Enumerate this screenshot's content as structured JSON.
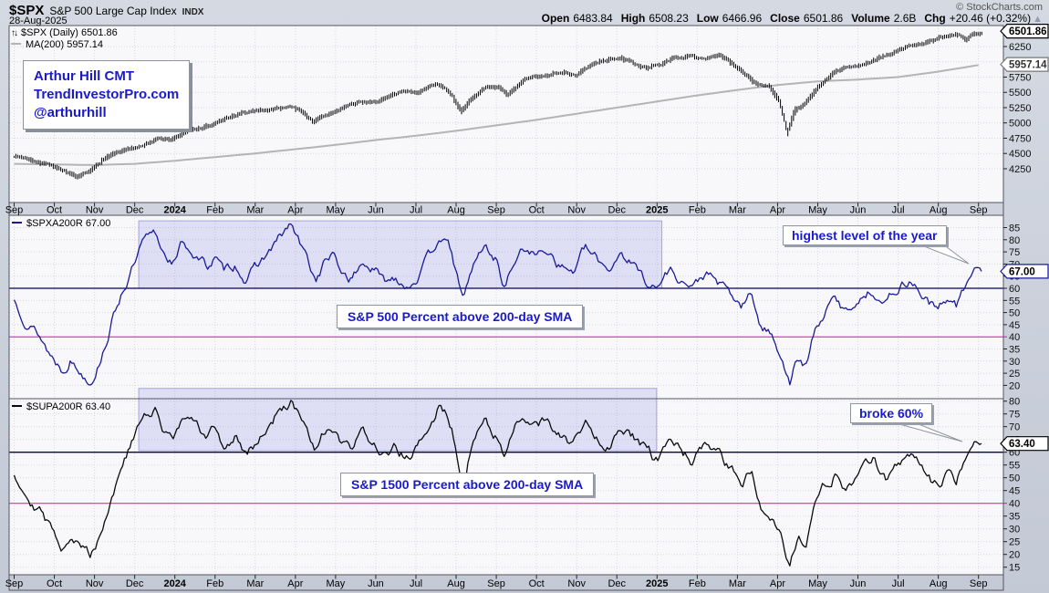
{
  "header": {
    "symbol": "$SPX",
    "name": "S&P 500 Large Cap Index",
    "exchange": "INDX",
    "date": "28-Aug-2025",
    "copyright": "© StockCharts.com",
    "quote": {
      "open_label": "Open",
      "open": "6483.84",
      "high_label": "High",
      "high": "6508.23",
      "low_label": "Low",
      "low": "6466.96",
      "close_label": "Close",
      "close": "6501.86",
      "volume_label": "Volume",
      "volume": "2.6B",
      "chg_label": "Chg",
      "chg": "+20.46 (+0.32%)",
      "arrow": "▲"
    }
  },
  "legends": {
    "price": {
      "icon": "↑↓",
      "label": "$SPX (Daily)",
      "value": "6501.86"
    },
    "ma": {
      "label": "MA(200)",
      "value": "5957.14"
    },
    "spxa": {
      "label": "$SPXA200R",
      "value": "67.00"
    },
    "supa": {
      "label": "$SUPA200R",
      "value": "63.40"
    }
  },
  "annotations": {
    "credit_line1": "Arthur Hill CMT",
    "credit_line2": "TrendInvestorPro.com",
    "credit_line3": "@arthurhill",
    "panel2_box": "S&P 500 Percent above 200-day SMA",
    "panel3_box": "S&P 1500 Percent above 200-day SMA",
    "bubble_high": "highest level of the year",
    "bubble_broke": "broke 60%"
  },
  "colors": {
    "page_bg": "#c9cfda",
    "panel_bg": "#f8f8fb",
    "grid": "#d6d7e3",
    "frame": "#54555f",
    "price": "#000000",
    "ma": "#b4b4b4",
    "spxa_line": "#1a1a99",
    "supa_line": "#0a0a0a",
    "level60": "#000066",
    "level40": "#ee00cc",
    "highlight_fill": "rgba(120,120,220,0.20)",
    "highlight_stroke": "rgba(110,110,200,0.55)",
    "annotation_text": "#1a1acd",
    "axis_text": "#111111"
  },
  "chart_data": [
    {
      "type": "ohlc-bars",
      "panel": "price",
      "title": "$SPX (Daily) with 200-day moving average",
      "x_categories": [
        "Sep",
        "Oct",
        "Nov",
        "Dec",
        "2024",
        "Feb",
        "Mar",
        "Apr",
        "May",
        "Jun",
        "Jul",
        "Aug",
        "Sep",
        "Oct",
        "Nov",
        "Dec",
        "2025",
        "Feb",
        "Mar",
        "Apr",
        "May",
        "Jun",
        "Jul",
        "Aug",
        "Sep"
      ],
      "yticks": [
        4250,
        4500,
        4750,
        5000,
        5250,
        5500,
        5750,
        6000,
        6250
      ],
      "ylim": [
        3700,
        6600
      ],
      "series": [
        {
          "name": "$SPX (Daily)",
          "last": 6501.86,
          "anchors": [
            [
              0,
              4460
            ],
            [
              0.6,
              4390
            ],
            [
              1.0,
              4310
            ],
            [
              1.3,
              4220
            ],
            [
              1.6,
              4120
            ],
            [
              1.9,
              4180
            ],
            [
              2.2,
              4370
            ],
            [
              2.6,
              4530
            ],
            [
              3.0,
              4580
            ],
            [
              3.3,
              4680
            ],
            [
              3.6,
              4740
            ],
            [
              3.9,
              4720
            ],
            [
              4.2,
              4830
            ],
            [
              4.6,
              4900
            ],
            [
              5.0,
              4980
            ],
            [
              5.3,
              5070
            ],
            [
              5.6,
              5120
            ],
            [
              6.0,
              5180
            ],
            [
              6.4,
              5230
            ],
            [
              6.9,
              5260
            ],
            [
              7.2,
              5180
            ],
            [
              7.45,
              5030
            ],
            [
              7.8,
              5120
            ],
            [
              8.2,
              5260
            ],
            [
              8.6,
              5320
            ],
            [
              9.0,
              5350
            ],
            [
              9.3,
              5420
            ],
            [
              9.6,
              5470
            ],
            [
              10.0,
              5510
            ],
            [
              10.4,
              5610
            ],
            [
              10.55,
              5665
            ],
            [
              10.9,
              5480
            ],
            [
              11.15,
              5210
            ],
            [
              11.5,
              5450
            ],
            [
              11.8,
              5620
            ],
            [
              12.1,
              5560
            ],
            [
              12.3,
              5440
            ],
            [
              12.7,
              5680
            ],
            [
              13.0,
              5740
            ],
            [
              13.4,
              5820
            ],
            [
              13.7,
              5850
            ],
            [
              14.0,
              5780
            ],
            [
              14.4,
              5950
            ],
            [
              14.7,
              6010
            ],
            [
              15.1,
              6080
            ],
            [
              15.5,
              5950
            ],
            [
              15.8,
              5890
            ],
            [
              16.1,
              5950
            ],
            [
              16.4,
              6060
            ],
            [
              16.8,
              6090
            ],
            [
              17.2,
              6050
            ],
            [
              17.55,
              6130
            ],
            [
              17.8,
              6010
            ],
            [
              18.1,
              5850
            ],
            [
              18.5,
              5650
            ],
            [
              18.8,
              5620
            ],
            [
              19.05,
              5400
            ],
            [
              19.25,
              4870
            ],
            [
              19.45,
              5240
            ],
            [
              19.7,
              5320
            ],
            [
              20.0,
              5560
            ],
            [
              20.4,
              5800
            ],
            [
              20.7,
              5890
            ],
            [
              21.1,
              5950
            ],
            [
              21.5,
              6030
            ],
            [
              21.9,
              6150
            ],
            [
              22.3,
              6260
            ],
            [
              22.6,
              6300
            ],
            [
              22.9,
              6350
            ],
            [
              23.2,
              6390
            ],
            [
              23.5,
              6420
            ],
            [
              23.7,
              6350
            ],
            [
              23.9,
              6460
            ],
            [
              24.1,
              6500
            ]
          ]
        },
        {
          "name": "MA(200)",
          "last": 5957.14,
          "anchors": [
            [
              0,
              4330
            ],
            [
              1,
              4320
            ],
            [
              2,
              4310
            ],
            [
              3,
              4330
            ],
            [
              4,
              4380
            ],
            [
              5,
              4440
            ],
            [
              6,
              4500
            ],
            [
              7,
              4570
            ],
            [
              8,
              4640
            ],
            [
              9,
              4720
            ],
            [
              10,
              4790
            ],
            [
              11,
              4870
            ],
            [
              12,
              4960
            ],
            [
              13,
              5050
            ],
            [
              14,
              5150
            ],
            [
              15,
              5250
            ],
            [
              16,
              5350
            ],
            [
              17,
              5450
            ],
            [
              18,
              5540
            ],
            [
              19,
              5620
            ],
            [
              20,
              5680
            ],
            [
              21,
              5710
            ],
            [
              22,
              5750
            ],
            [
              23,
              5840
            ],
            [
              24.1,
              5957
            ]
          ]
        }
      ],
      "callouts": [
        {
          "text": "6501.86",
          "value": 6501.86
        },
        {
          "text": "5957.14",
          "value": 5957.14
        }
      ]
    },
    {
      "type": "line",
      "panel": "spxa",
      "name": "$SPXA200R",
      "title": "S&P 500 Percent above 200-day SMA",
      "last": 67.0,
      "yticks": [
        20,
        25,
        30,
        35,
        40,
        45,
        50,
        55,
        60,
        65,
        70,
        75,
        80,
        85
      ],
      "hlines": [
        {
          "value": 60
        },
        {
          "value": 40
        }
      ],
      "highlight": {
        "x0_month": 3.1,
        "x1_month": 16.12,
        "y_top": 87.8,
        "y_bottom": 60
      },
      "callout": {
        "text": "67.00",
        "value": 67.0
      },
      "anchors": [
        [
          0,
          55
        ],
        [
          0.3,
          48
        ],
        [
          0.6,
          42
        ],
        [
          0.9,
          33
        ],
        [
          1.2,
          27
        ],
        [
          1.4,
          32
        ],
        [
          1.65,
          26
        ],
        [
          1.9,
          23
        ],
        [
          2.1,
          30
        ],
        [
          2.4,
          45
        ],
        [
          2.7,
          60
        ],
        [
          3.0,
          70
        ],
        [
          3.2,
          78
        ],
        [
          3.5,
          81
        ],
        [
          3.7,
          75
        ],
        [
          4.0,
          71
        ],
        [
          4.2,
          79
        ],
        [
          4.5,
          74
        ],
        [
          4.8,
          69
        ],
        [
          5.0,
          73
        ],
        [
          5.2,
          66
        ],
        [
          5.5,
          70
        ],
        [
          5.8,
          64
        ],
        [
          6.0,
          68
        ],
        [
          6.3,
          74
        ],
        [
          6.6,
          80
        ],
        [
          6.9,
          86
        ],
        [
          7.1,
          78
        ],
        [
          7.3,
          71
        ],
        [
          7.5,
          63
        ],
        [
          7.7,
          70
        ],
        [
          7.9,
          74
        ],
        [
          8.1,
          67
        ],
        [
          8.4,
          64
        ],
        [
          8.7,
          71
        ],
        [
          9.0,
          67
        ],
        [
          9.2,
          62
        ],
        [
          9.5,
          65
        ],
        [
          9.8,
          62
        ],
        [
          10.1,
          67
        ],
        [
          10.4,
          74
        ],
        [
          10.6,
          83
        ],
        [
          10.9,
          74
        ],
        [
          11.15,
          54
        ],
        [
          11.4,
          68
        ],
        [
          11.7,
          77
        ],
        [
          12.0,
          72
        ],
        [
          12.2,
          61
        ],
        [
          12.5,
          73
        ],
        [
          12.8,
          77
        ],
        [
          13.0,
          73
        ],
        [
          13.3,
          77
        ],
        [
          13.6,
          70
        ],
        [
          13.9,
          67
        ],
        [
          14.2,
          76
        ],
        [
          14.5,
          71
        ],
        [
          14.8,
          68
        ],
        [
          15.1,
          76
        ],
        [
          15.4,
          70
        ],
        [
          15.7,
          64
        ],
        [
          16.0,
          60
        ],
        [
          16.3,
          68
        ],
        [
          16.6,
          64
        ],
        [
          16.9,
          60
        ],
        [
          17.2,
          66
        ],
        [
          17.5,
          62
        ],
        [
          17.8,
          57
        ],
        [
          18.1,
          52
        ],
        [
          18.35,
          57
        ],
        [
          18.6,
          44
        ],
        [
          18.9,
          40
        ],
        [
          19.1,
          33
        ],
        [
          19.3,
          22
        ],
        [
          19.5,
          31
        ],
        [
          19.7,
          27
        ],
        [
          19.9,
          40
        ],
        [
          20.1,
          48
        ],
        [
          20.4,
          55
        ],
        [
          20.7,
          50
        ],
        [
          21.0,
          56
        ],
        [
          21.4,
          60
        ],
        [
          21.7,
          54
        ],
        [
          22.0,
          61
        ],
        [
          22.3,
          64
        ],
        [
          22.6,
          58
        ],
        [
          23.0,
          50
        ],
        [
          23.25,
          57
        ],
        [
          23.45,
          53
        ],
        [
          23.65,
          60
        ],
        [
          23.9,
          68
        ],
        [
          24.1,
          67
        ]
      ]
    },
    {
      "type": "line",
      "panel": "supa",
      "name": "$SUPA200R",
      "title": "S&P 1500 Percent above 200-day SMA",
      "last": 63.4,
      "yticks": [
        15,
        20,
        25,
        30,
        35,
        40,
        45,
        50,
        55,
        60,
        65,
        70,
        75,
        80
      ],
      "hlines": [
        {
          "value": 60
        },
        {
          "value": 40
        }
      ],
      "highlight": {
        "x0_month": 3.1,
        "x1_month": 15.99,
        "y_top": 85,
        "y_bottom": 60.6
      },
      "callout": {
        "text": "63.40",
        "value": 63.4
      },
      "anchors": [
        [
          0,
          52
        ],
        [
          0.3,
          45
        ],
        [
          0.6,
          39
        ],
        [
          0.9,
          30
        ],
        [
          1.2,
          24
        ],
        [
          1.4,
          29
        ],
        [
          1.65,
          23
        ],
        [
          1.9,
          20
        ],
        [
          2.1,
          27
        ],
        [
          2.4,
          42
        ],
        [
          2.7,
          56
        ],
        [
          3.0,
          66
        ],
        [
          3.2,
          73
        ],
        [
          3.5,
          76
        ],
        [
          3.7,
          70
        ],
        [
          4.0,
          67
        ],
        [
          4.2,
          74
        ],
        [
          4.5,
          70
        ],
        [
          4.8,
          65
        ],
        [
          5.0,
          69
        ],
        [
          5.2,
          62
        ],
        [
          5.5,
          66
        ],
        [
          5.8,
          60
        ],
        [
          6.0,
          64
        ],
        [
          6.3,
          70
        ],
        [
          6.6,
          76
        ],
        [
          6.9,
          80
        ],
        [
          7.1,
          73
        ],
        [
          7.3,
          66
        ],
        [
          7.5,
          58
        ],
        [
          7.7,
          66
        ],
        [
          7.9,
          70
        ],
        [
          8.1,
          63
        ],
        [
          8.4,
          60
        ],
        [
          8.7,
          67
        ],
        [
          9.0,
          63
        ],
        [
          9.2,
          58
        ],
        [
          9.5,
          61
        ],
        [
          9.8,
          58
        ],
        [
          10.1,
          63
        ],
        [
          10.4,
          70
        ],
        [
          10.6,
          79
        ],
        [
          10.9,
          70
        ],
        [
          11.15,
          50
        ],
        [
          11.4,
          64
        ],
        [
          11.7,
          73
        ],
        [
          12.0,
          68
        ],
        [
          12.2,
          57
        ],
        [
          12.5,
          69
        ],
        [
          12.8,
          73
        ],
        [
          13.0,
          69
        ],
        [
          13.3,
          73
        ],
        [
          13.6,
          66
        ],
        [
          13.9,
          63
        ],
        [
          14.2,
          72
        ],
        [
          14.5,
          67
        ],
        [
          14.8,
          64
        ],
        [
          15.1,
          72
        ],
        [
          15.4,
          66
        ],
        [
          15.7,
          60
        ],
        [
          16.0,
          56
        ],
        [
          16.3,
          64
        ],
        [
          16.6,
          60
        ],
        [
          16.9,
          56
        ],
        [
          17.2,
          62
        ],
        [
          17.5,
          58
        ],
        [
          17.8,
          53
        ],
        [
          18.1,
          48
        ],
        [
          18.35,
          53
        ],
        [
          18.6,
          40
        ],
        [
          18.9,
          36
        ],
        [
          19.1,
          29
        ],
        [
          19.3,
          17
        ],
        [
          19.5,
          27
        ],
        [
          19.7,
          23
        ],
        [
          19.9,
          36
        ],
        [
          20.1,
          44
        ],
        [
          20.4,
          51
        ],
        [
          20.7,
          46
        ],
        [
          21.0,
          52
        ],
        [
          21.4,
          56
        ],
        [
          21.7,
          50
        ],
        [
          22.0,
          57
        ],
        [
          22.3,
          60
        ],
        [
          22.6,
          54
        ],
        [
          23.0,
          46
        ],
        [
          23.25,
          53
        ],
        [
          23.45,
          49
        ],
        [
          23.65,
          57
        ],
        [
          23.9,
          64
        ],
        [
          24.1,
          63.4
        ]
      ]
    }
  ]
}
